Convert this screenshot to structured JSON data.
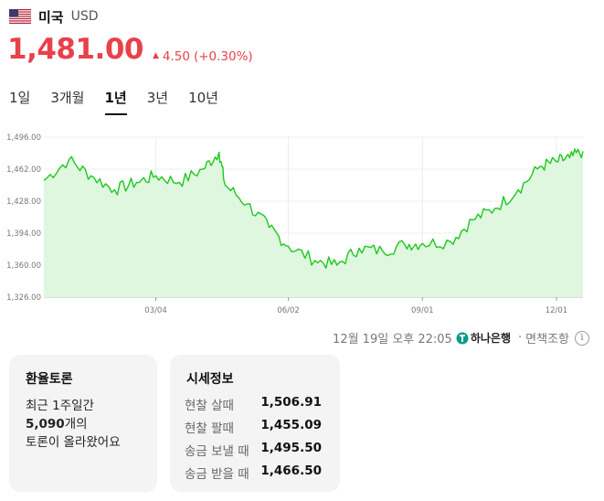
{
  "header": {
    "country": "미국",
    "currency_code": "USD",
    "flag_icon": "us-flag-icon"
  },
  "price": {
    "value": "1,481.00",
    "change": "4.50",
    "change_pct": "(+0.30%)",
    "direction": "up",
    "color": "#e8414b"
  },
  "tabs": [
    {
      "label": "1일",
      "active": false
    },
    {
      "label": "3개월",
      "active": false
    },
    {
      "label": "1년",
      "active": true
    },
    {
      "label": "3년",
      "active": false
    },
    {
      "label": "10년",
      "active": false
    }
  ],
  "chart_data": {
    "type": "area",
    "line_color": "#1ec81e",
    "fill_color": "#dff6df",
    "ylim": [
      1326,
      1496
    ],
    "yticks": [
      "1,496.00",
      "1,462.00",
      "1,428.00",
      "1,394.00",
      "1,360.00",
      "1,326.00"
    ],
    "xticks": [
      "03/04",
      "06/02",
      "09/01",
      "12/01"
    ],
    "grid": true,
    "x": [
      "2023-12-19",
      "2024-01-05",
      "2024-01-20",
      "2024-02-05",
      "2024-02-20",
      "2024-03-04",
      "2024-03-20",
      "2024-04-05",
      "2024-04-16",
      "2024-04-20",
      "2024-05-05",
      "2024-05-20",
      "2024-06-02",
      "2024-06-20",
      "2024-07-05",
      "2024-07-20",
      "2024-08-05",
      "2024-08-20",
      "2024-09-01",
      "2024-09-20",
      "2024-10-05",
      "2024-10-20",
      "2024-11-05",
      "2024-11-20",
      "2024-12-01",
      "2024-12-10",
      "2024-12-19"
    ],
    "values": [
      1450,
      1472,
      1455,
      1440,
      1448,
      1455,
      1448,
      1462,
      1480,
      1445,
      1425,
      1400,
      1380,
      1365,
      1360,
      1378,
      1375,
      1382,
      1383,
      1385,
      1408,
      1420,
      1440,
      1465,
      1470,
      1474,
      1481
    ]
  },
  "source": {
    "datetime": "12월 19일 오후 22:05",
    "bank": "하나은행",
    "note": "면책조항",
    "info_icon": "info-icon"
  },
  "forum": {
    "title": "환율토론",
    "line1": "최근 1주일간",
    "count": "5,090",
    "count_suffix": "개의",
    "line3": "토론이 올라왔어요"
  },
  "rates": {
    "title": "시세정보",
    "rows": [
      {
        "label": "현찰 살때",
        "value": "1,506.91"
      },
      {
        "label": "현찰 팔때",
        "value": "1,455.09"
      },
      {
        "label": "송금 보낼 때",
        "value": "1,495.50"
      },
      {
        "label": "송금 받을 때",
        "value": "1,466.50"
      }
    ]
  }
}
